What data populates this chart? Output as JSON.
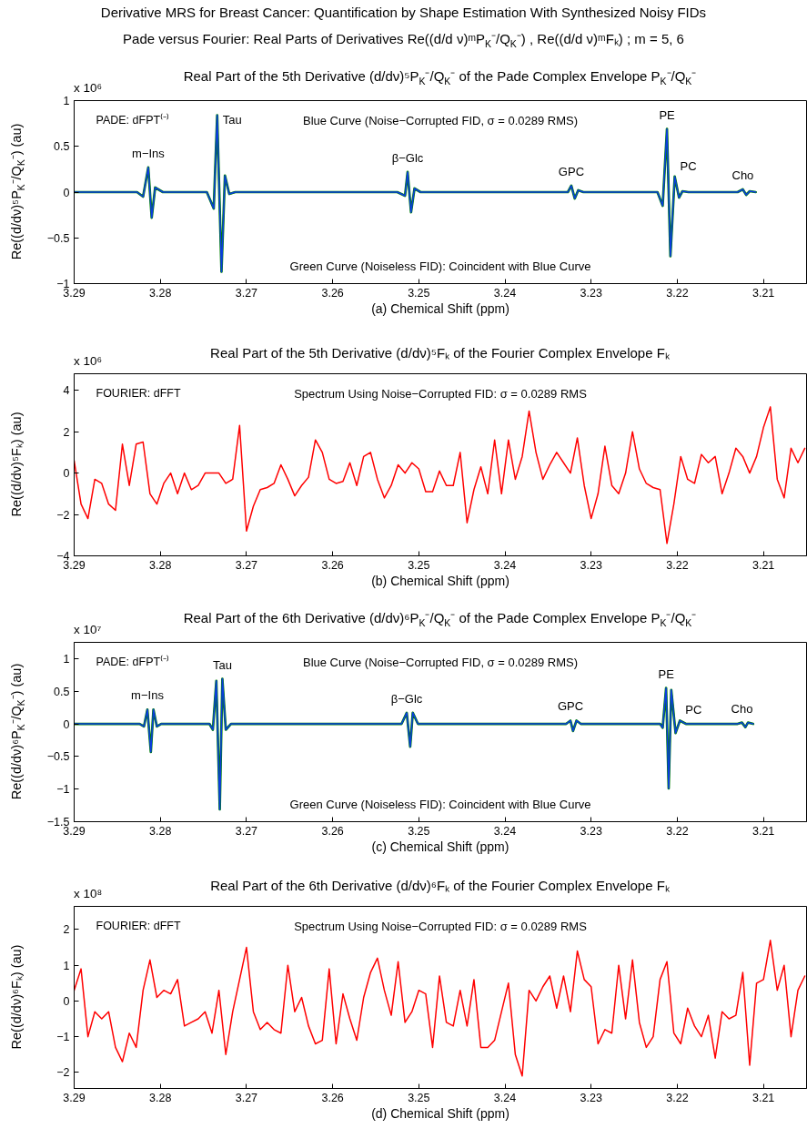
{
  "chart_data": [
    {
      "type": "line",
      "title": "Derivative MRS for Breast Cancer: Quantification by Shape Estimation With Synthesized Noisy FIDs\nPade versus Fourier: Real Parts of Derivatives Re((d/d ν)ᵐP$_{K}$⁻/Q$_{K}$⁻) , Re((d/d ν)ᵐFₖ) ; m = 5, 6",
      "subtitle": "Real Part of the 5th Derivative (d/dν)⁵P$_{K}$⁻/Q$_{K}$⁻ of the Pade Complex Envelope P$_{K}$⁻/Q$_{K}$⁻",
      "xlabel": "(a) Chemical Shift (ppm)",
      "ylabel": "Re((d/dν)⁵P$_{K}$⁻/Q$_{K}$⁻) (au)",
      "xlim": [
        3.29,
        3.205
      ],
      "xticks": [
        3.29,
        3.28,
        3.27,
        3.26,
        3.25,
        3.24,
        3.23,
        3.22,
        3.21
      ],
      "ylim": [
        -1,
        1
      ],
      "yticks": [
        -1,
        -0.5,
        0,
        0.5,
        1
      ],
      "grid": false,
      "legend": false,
      "annotations": [
        "x 10⁶",
        "PADE: dFPT⁽⁻⁾",
        "Blue Curve (Noise−Corrupted FID, σ = 0.0289 RMS)",
        "Green Curve (Noiseless FID): Coincident with Blue Curve",
        {
          "text": "m−Ins",
          "x": 3.2814,
          "y": 0.27
        },
        {
          "text": "Tau",
          "x": 3.2734,
          "y": 0.84
        },
        {
          "text": "β−Glc",
          "x": 3.2513,
          "y": 0.22
        },
        {
          "text": "GPC",
          "x": 3.2323,
          "y": 0.07
        },
        {
          "text": "PE",
          "x": 3.2212,
          "y": 0.69
        },
        {
          "text": "PC",
          "x": 3.2203,
          "y": 0.17
        },
        {
          "text": "Cho",
          "x": 3.2124,
          "y": 0.03
        }
      ],
      "series": [
        {
          "color": "#008000",
          "x": [
            3.29,
            3.2827,
            3.282,
            3.2814,
            3.281,
            3.2806,
            3.2797,
            3.2746,
            3.2738,
            3.2734,
            3.2729,
            3.2725,
            3.272,
            3.2713,
            3.2525,
            3.2516,
            3.2513,
            3.2509,
            3.2505,
            3.2498,
            3.2327,
            3.2323,
            3.2319,
            3.2315,
            3.2309,
            3.2223,
            3.2217,
            3.2212,
            3.2208,
            3.2203,
            3.2198,
            3.2194,
            3.2187,
            3.213,
            3.2124,
            3.212,
            3.2116,
            3.2109
          ],
          "values": [
            0,
            0,
            -0.05,
            0.27,
            -0.28,
            0.05,
            0,
            0,
            -0.18,
            0.84,
            -0.87,
            0.18,
            -0.02,
            0,
            0,
            -0.04,
            0.22,
            -0.22,
            0.04,
            0,
            0,
            0.07,
            -0.07,
            0.02,
            0,
            0,
            -0.15,
            0.69,
            -0.7,
            0.17,
            -0.06,
            0.01,
            0,
            0,
            0.03,
            -0.03,
            0.01,
            0
          ]
        },
        {
          "color": "#0a3ce0",
          "x": [
            3.29,
            3.2827,
            3.282,
            3.2814,
            3.281,
            3.2806,
            3.2797,
            3.2746,
            3.2738,
            3.2734,
            3.2729,
            3.2725,
            3.272,
            3.2713,
            3.2525,
            3.2516,
            3.2513,
            3.2509,
            3.2505,
            3.2498,
            3.2327,
            3.2323,
            3.2319,
            3.2315,
            3.2309,
            3.2223,
            3.2217,
            3.2212,
            3.2208,
            3.2203,
            3.2198,
            3.2194,
            3.2187,
            3.213,
            3.2124,
            3.212,
            3.2116,
            3.2109
          ],
          "values": [
            0,
            0,
            -0.05,
            0.27,
            -0.28,
            0.05,
            0,
            0,
            -0.18,
            0.84,
            -0.87,
            0.18,
            -0.02,
            0,
            0,
            -0.04,
            0.22,
            -0.22,
            0.04,
            0,
            0,
            0.07,
            -0.07,
            0.02,
            0,
            0,
            -0.15,
            0.69,
            -0.7,
            0.17,
            -0.06,
            0.01,
            0,
            0,
            0.03,
            -0.03,
            0.01,
            0
          ]
        }
      ]
    },
    {
      "type": "line",
      "title": "Real Part of the 5th Derivative (d/dν)⁵Fₖ of the Fourier Complex Envelope Fₖ",
      "xlabel": "(b) Chemical Shift (ppm)",
      "ylabel": "Re((d/dν)⁵Fₖ) (au)",
      "xlim": [
        3.29,
        3.205
      ],
      "xticks": [
        3.29,
        3.28,
        3.27,
        3.26,
        3.25,
        3.24,
        3.23,
        3.22,
        3.21
      ],
      "ylim": [
        -4,
        4.8
      ],
      "yticks": [
        -4,
        -2,
        0,
        2,
        4
      ],
      "grid": false,
      "legend": false,
      "annotations": [
        "x 10⁶",
        "FOURIER: dFFT",
        "Spectrum Using Noise−Corrupted FID: σ = 0.0289 RMS"
      ],
      "x": [
        3.29,
        3.2892,
        3.2884,
        3.2876,
        3.2868,
        3.286,
        3.2852,
        3.2844,
        3.2836,
        3.2828,
        3.282,
        3.2812,
        3.2804,
        3.2796,
        3.2788,
        3.278,
        3.2772,
        3.2764,
        3.2756,
        3.2748,
        3.274,
        3.2732,
        3.2724,
        3.2716,
        3.2708,
        3.27,
        3.2692,
        3.2684,
        3.2676,
        3.2668,
        3.266,
        3.2652,
        3.2644,
        3.2636,
        3.2628,
        3.262,
        3.2612,
        3.2604,
        3.2596,
        3.2588,
        3.258,
        3.2572,
        3.2564,
        3.2556,
        3.2548,
        3.254,
        3.2532,
        3.2524,
        3.2516,
        3.2508,
        3.25,
        3.2492,
        3.2484,
        3.2476,
        3.2468,
        3.246,
        3.2452,
        3.2444,
        3.2436,
        3.2428,
        3.242,
        3.2412,
        3.2404,
        3.2396,
        3.2388,
        3.238,
        3.2372,
        3.2364,
        3.2356,
        3.2348,
        3.234,
        3.2332,
        3.2324,
        3.2316,
        3.2308,
        3.23,
        3.2292,
        3.2284,
        3.2276,
        3.2268,
        3.226,
        3.2252,
        3.2244,
        3.2236,
        3.2228,
        3.222,
        3.2212,
        3.2204,
        3.2196,
        3.2188,
        3.218,
        3.2172,
        3.2164,
        3.2156,
        3.2148,
        3.214,
        3.2132,
        3.2124,
        3.2116,
        3.2108,
        3.21,
        3.2092,
        3.2084,
        3.2076,
        3.2068,
        3.206,
        3.2052
      ],
      "series": [
        {
          "color": "#ff0000",
          "values": [
            0.6,
            -1.5,
            -2.2,
            -0.3,
            -0.5,
            -1.5,
            -1.8,
            1.4,
            -0.6,
            1.4,
            1.5,
            -1.0,
            -1.5,
            -0.5,
            0.0,
            -1.0,
            0.0,
            -0.8,
            -0.6,
            0.0,
            0.0,
            0.0,
            -0.5,
            -0.3,
            2.3,
            -2.8,
            -1.6,
            -0.8,
            -0.7,
            -0.5,
            0.4,
            -0.3,
            -1.1,
            -0.6,
            -0.2,
            1.6,
            1.0,
            -0.3,
            -0.5,
            -0.4,
            0.5,
            -0.6,
            0.8,
            1.0,
            -0.3,
            -1.2,
            -0.6,
            0.4,
            0.0,
            0.5,
            0.2,
            -0.9,
            -0.9,
            0.1,
            -0.6,
            -0.6,
            1.0,
            -2.4,
            -0.8,
            0.3,
            -1.0,
            1.6,
            -1.0,
            1.6,
            -0.3,
            0.8,
            3.0,
            1.0,
            -0.3,
            0.4,
            1.0,
            0.5,
            0.0,
            1.7,
            -0.6,
            -2.2,
            -1.0,
            1.3,
            -0.6,
            -1.0,
            0.0,
            2.0,
            0.2,
            -0.5,
            -0.7,
            -0.8,
            -3.4,
            -1.5,
            0.8,
            -0.3,
            -0.5,
            0.9,
            0.5,
            0.8,
            -1.0,
            0.0,
            1.2,
            0.8,
            0.0,
            0.8,
            2.2,
            3.2,
            -0.3,
            -1.2,
            1.2,
            0.5,
            1.2
          ]
        }
      ]
    },
    {
      "type": "line",
      "title": "Real Part of the 6th Derivative (d/dν)⁶P$_{K}$⁻/Q$_{K}$⁻ of the Pade Complex Envelope P$_{K}$⁻/Q$_{K}$⁻",
      "xlabel": "(c) Chemical Shift (ppm)",
      "ylabel": "Re((d/dν)⁶P$_{K}$⁻/Q$_{K}$⁻) (au)",
      "xlim": [
        3.29,
        3.205
      ],
      "xticks": [
        3.29,
        3.28,
        3.27,
        3.26,
        3.25,
        3.24,
        3.23,
        3.22,
        3.21
      ],
      "ylim": [
        -1.5,
        1.25
      ],
      "yticks": [
        -1.5,
        -1,
        -0.5,
        0,
        0.5,
        1
      ],
      "grid": false,
      "legend": false,
      "annotations": [
        "x 10⁷",
        "PADE: dFPT⁽⁻⁾",
        "Blue Curve (Noise−Corrupted FID, σ = 0.0289 RMS)",
        "Green Curve (Noiseless FID): Coincident with Blue Curve",
        {
          "text": "m−Ins",
          "x": 3.2815,
          "y": 0.22
        },
        {
          "text": "Tau",
          "x": 3.2728,
          "y": 0.69
        },
        {
          "text": "β−Glc",
          "x": 3.2514,
          "y": 0.17
        },
        {
          "text": "GPC",
          "x": 3.2324,
          "y": 0.05
        },
        {
          "text": "PE",
          "x": 3.2213,
          "y": 0.55
        },
        {
          "text": "PC",
          "x": 3.2197,
          "y": 0.05
        },
        {
          "text": "Cho",
          "x": 3.2125,
          "y": 0.02
        }
      ],
      "series": [
        {
          "color": "#008000",
          "x": [
            3.29,
            3.2824,
            3.2819,
            3.2815,
            3.2811,
            3.2808,
            3.2804,
            3.2799,
            3.2743,
            3.2739,
            3.2735,
            3.2731,
            3.2728,
            3.2724,
            3.2718,
            3.252,
            3.2514,
            3.251,
            3.2507,
            3.2501,
            3.2329,
            3.2324,
            3.2321,
            3.2317,
            3.2312,
            3.222,
            3.2217,
            3.2213,
            3.221,
            3.2207,
            3.2202,
            3.2197,
            3.219,
            3.213,
            3.2125,
            3.2121,
            3.2118,
            3.2112
          ],
          "values": [
            0,
            0,
            -0.04,
            0.22,
            -0.43,
            0.22,
            -0.04,
            0,
            0,
            -0.09,
            0.66,
            -1.31,
            0.69,
            -0.09,
            0,
            0,
            0.17,
            -0.35,
            0.17,
            0,
            0,
            0.05,
            -0.11,
            0.05,
            0,
            0,
            -0.06,
            0.55,
            -0.99,
            0.52,
            -0.14,
            0.05,
            0,
            0,
            0.02,
            -0.05,
            0.02,
            0
          ]
        },
        {
          "color": "#0a3ce0",
          "x": [
            3.29,
            3.2824,
            3.2819,
            3.2815,
            3.2811,
            3.2808,
            3.2804,
            3.2799,
            3.2743,
            3.2739,
            3.2735,
            3.2731,
            3.2728,
            3.2724,
            3.2718,
            3.252,
            3.2514,
            3.251,
            3.2507,
            3.2501,
            3.2329,
            3.2324,
            3.2321,
            3.2317,
            3.2312,
            3.222,
            3.2217,
            3.2213,
            3.221,
            3.2207,
            3.2202,
            3.2197,
            3.219,
            3.213,
            3.2125,
            3.2121,
            3.2118,
            3.2112
          ],
          "values": [
            0,
            0,
            -0.04,
            0.22,
            -0.43,
            0.22,
            -0.04,
            0,
            0,
            -0.09,
            0.66,
            -1.31,
            0.69,
            -0.09,
            0,
            0,
            0.17,
            -0.35,
            0.17,
            0,
            0,
            0.05,
            -0.11,
            0.05,
            0,
            0,
            -0.06,
            0.55,
            -0.99,
            0.52,
            -0.14,
            0.05,
            0,
            0,
            0.02,
            -0.05,
            0.02,
            0
          ]
        }
      ]
    },
    {
      "type": "line",
      "title": "Real Part of the 6th Derivative (d/dν)⁶Fₖ of the Fourier Complex Envelope Fₖ",
      "xlabel": "(d) Chemical Shift (ppm)",
      "ylabel": "Re((d/dν)⁶Fₖ) (au)",
      "xlim": [
        3.29,
        3.205
      ],
      "xticks": [
        3.29,
        3.28,
        3.27,
        3.26,
        3.25,
        3.24,
        3.23,
        3.22,
        3.21
      ],
      "ylim": [
        -2.45,
        2.65
      ],
      "yticks": [
        -2,
        -1,
        0,
        1,
        2
      ],
      "grid": false,
      "legend": false,
      "annotations": [
        "x 10⁸",
        "FOURIER: dFFT",
        "Spectrum Using Noise−Corrupted FID: σ = 0.0289 RMS"
      ],
      "x": [
        3.29,
        3.2892,
        3.2884,
        3.2876,
        3.2868,
        3.286,
        3.2852,
        3.2844,
        3.2836,
        3.2828,
        3.282,
        3.2812,
        3.2804,
        3.2796,
        3.2788,
        3.278,
        3.2772,
        3.2764,
        3.2756,
        3.2748,
        3.274,
        3.2732,
        3.2724,
        3.2716,
        3.2708,
        3.27,
        3.2692,
        3.2684,
        3.2676,
        3.2668,
        3.266,
        3.2652,
        3.2644,
        3.2636,
        3.2628,
        3.262,
        3.2612,
        3.2604,
        3.2596,
        3.2588,
        3.258,
        3.2572,
        3.2564,
        3.2556,
        3.2548,
        3.254,
        3.2532,
        3.2524,
        3.2516,
        3.2508,
        3.25,
        3.2492,
        3.2484,
        3.2476,
        3.2468,
        3.246,
        3.2452,
        3.2444,
        3.2436,
        3.2428,
        3.242,
        3.2412,
        3.2404,
        3.2396,
        3.2388,
        3.238,
        3.2372,
        3.2364,
        3.2356,
        3.2348,
        3.234,
        3.2332,
        3.2324,
        3.2316,
        3.2308,
        3.23,
        3.2292,
        3.2284,
        3.2276,
        3.2268,
        3.226,
        3.2252,
        3.2244,
        3.2236,
        3.2228,
        3.222,
        3.2212,
        3.2204,
        3.2196,
        3.2188,
        3.218,
        3.2172,
        3.2164,
        3.2156,
        3.2148,
        3.214,
        3.2132,
        3.2124,
        3.2116,
        3.2108,
        3.21,
        3.2092,
        3.2084,
        3.2076,
        3.2068,
        3.206,
        3.2052
      ],
      "series": [
        {
          "color": "#ff0000",
          "values": [
            0.3,
            0.9,
            -1.0,
            -0.3,
            -0.5,
            -0.3,
            -1.3,
            -1.7,
            -0.9,
            -1.3,
            0.3,
            1.15,
            0.1,
            0.3,
            0.2,
            0.6,
            -0.7,
            -0.6,
            -0.5,
            -0.3,
            -0.9,
            0.3,
            -1.5,
            -0.3,
            0.6,
            1.5,
            -0.3,
            -0.8,
            -0.6,
            -0.8,
            -0.9,
            1.0,
            -0.3,
            0.1,
            -0.7,
            -1.2,
            -1.1,
            0.9,
            -1.2,
            0.2,
            -0.5,
            -1.1,
            0.1,
            0.8,
            1.2,
            0.3,
            -0.4,
            1.1,
            -0.6,
            -0.3,
            0.3,
            0.2,
            -1.3,
            0.7,
            -0.6,
            -0.7,
            0.3,
            -0.7,
            0.6,
            -1.3,
            -1.3,
            -1.1,
            -0.3,
            0.5,
            -1.5,
            -2.1,
            0.3,
            0.0,
            0.4,
            0.7,
            -0.2,
            0.7,
            -0.3,
            1.4,
            0.6,
            0.4,
            -1.2,
            -0.8,
            -0.9,
            1.0,
            -0.5,
            1.15,
            -0.6,
            -1.3,
            -1.0,
            0.6,
            1.1,
            -0.9,
            -1.2,
            -0.2,
            -0.7,
            -1.0,
            -0.4,
            -1.6,
            -0.3,
            -0.5,
            -0.4,
            0.8,
            -1.8,
            0.5,
            0.6,
            1.7,
            0.3,
            1.0,
            -1.0,
            0.3,
            0.7
          ]
        }
      ]
    }
  ]
}
